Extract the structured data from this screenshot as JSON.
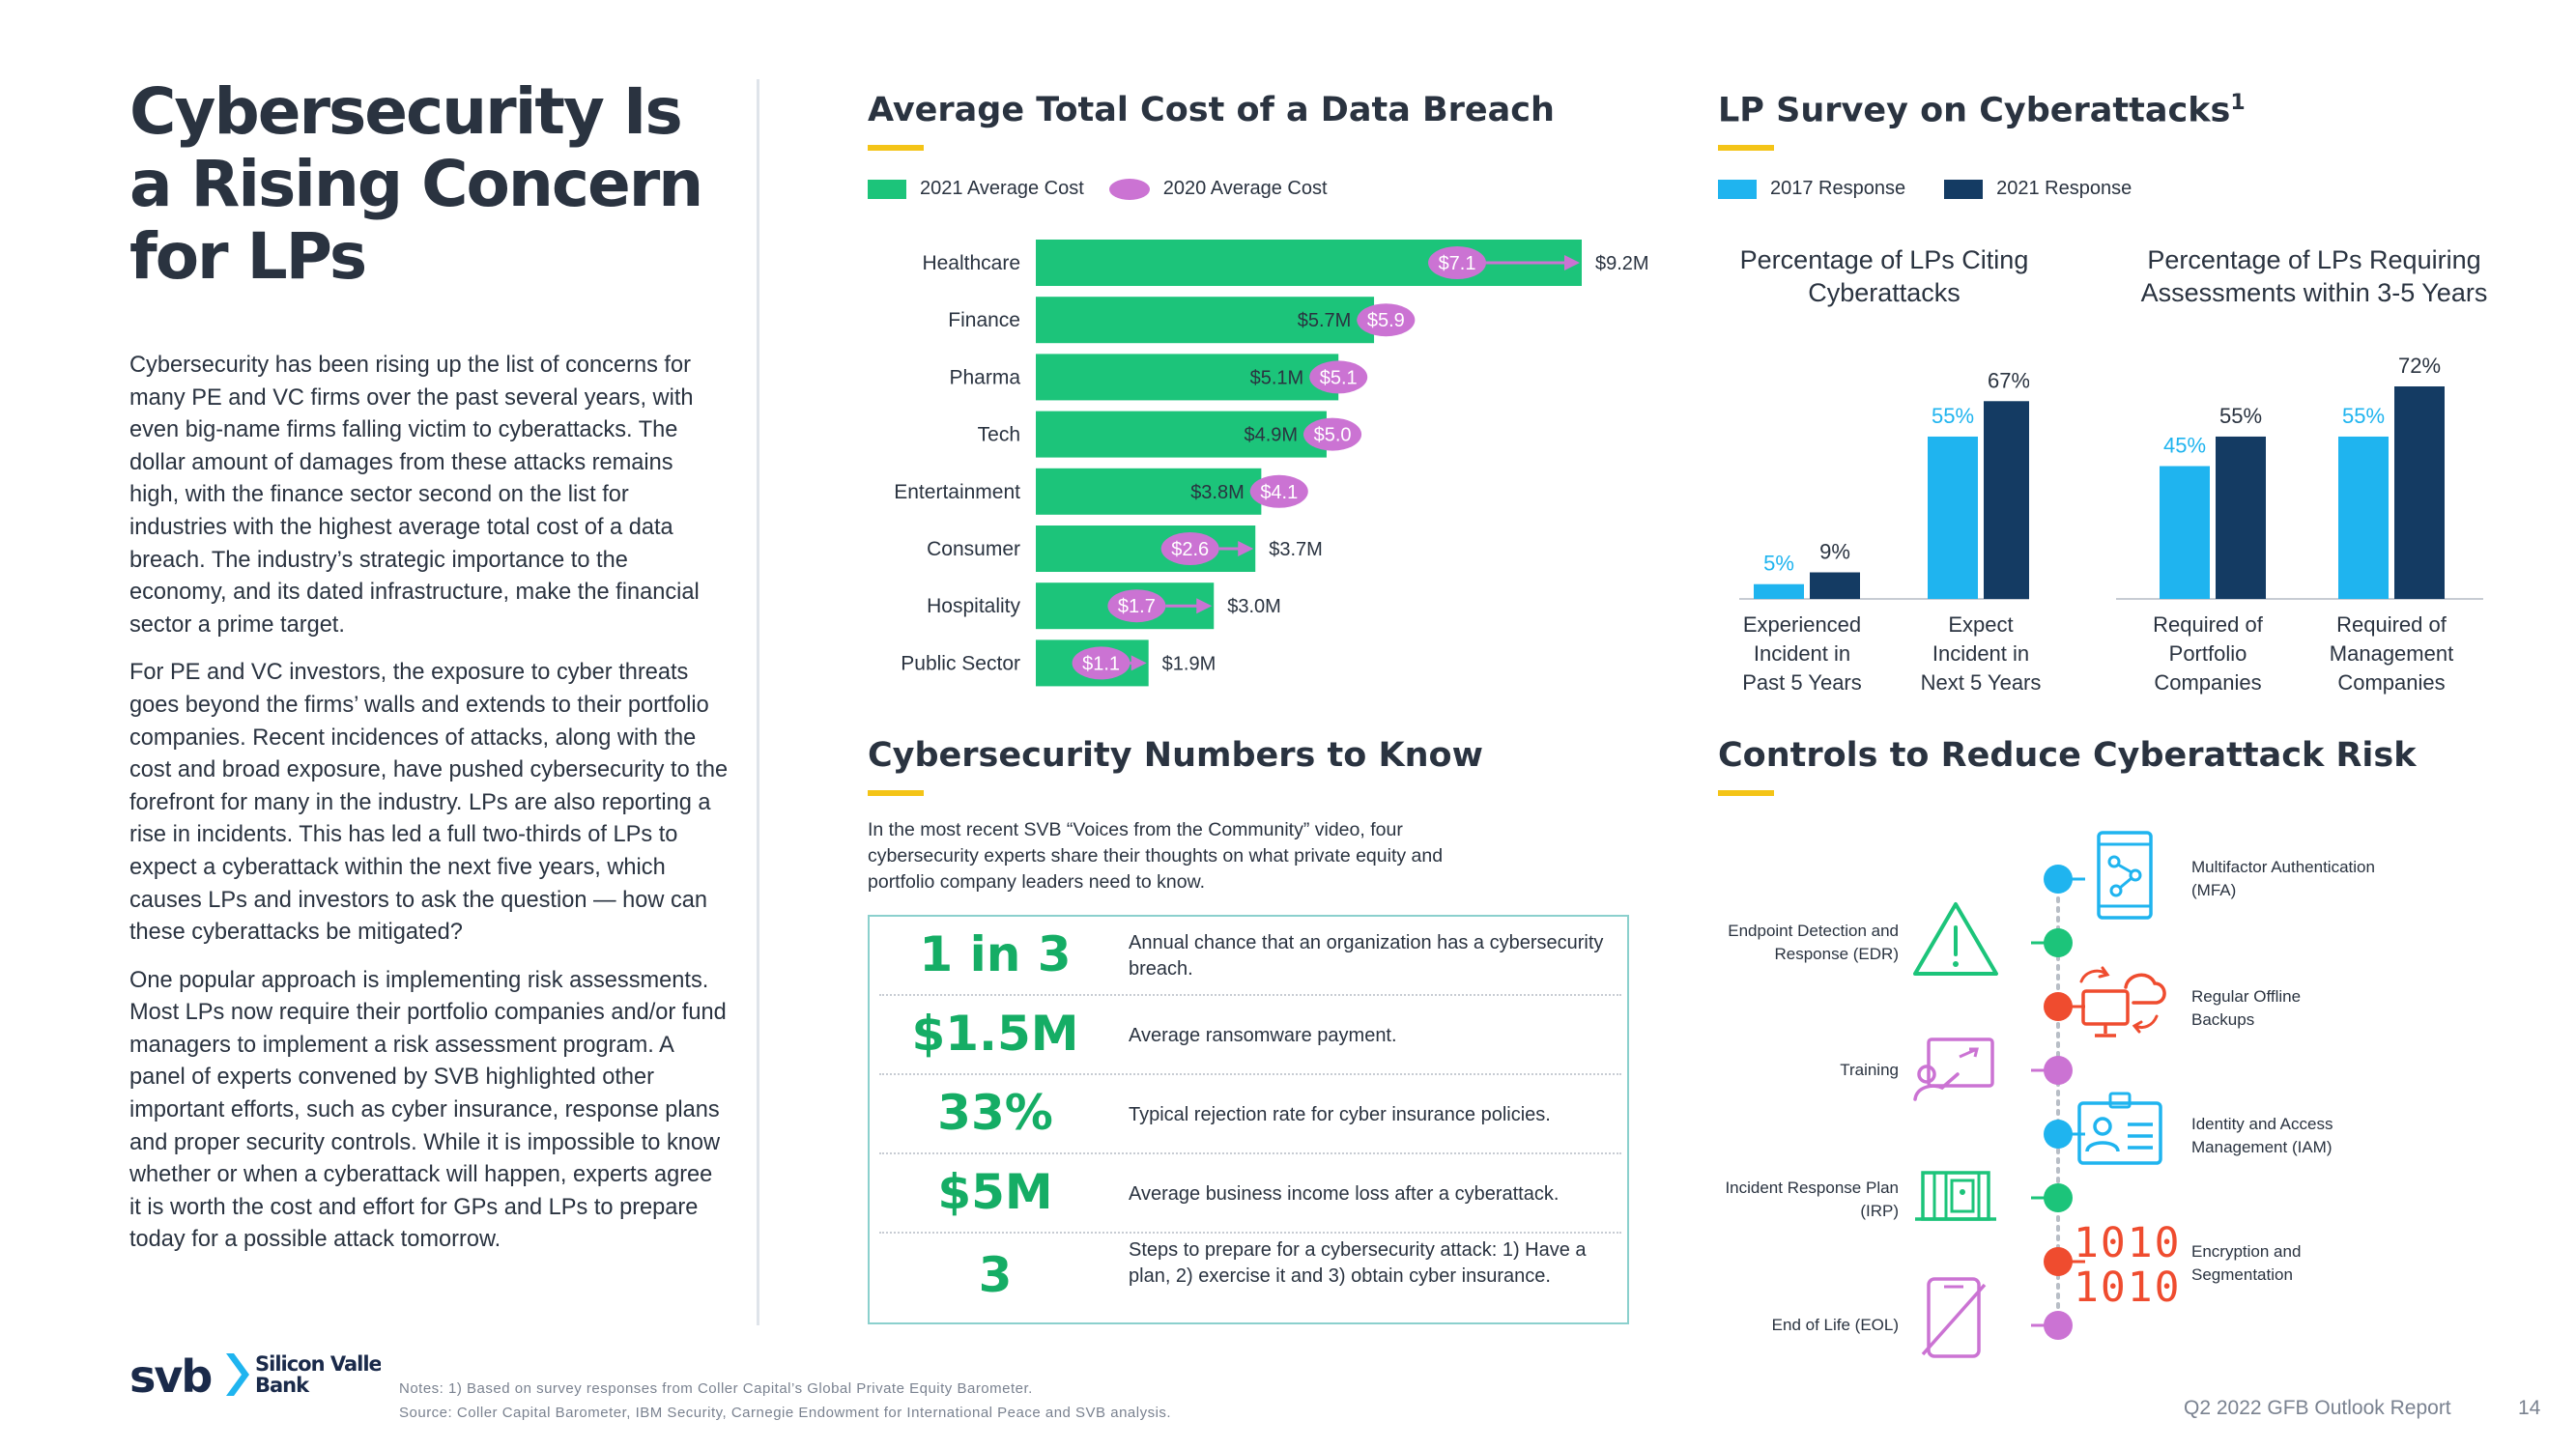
{
  "title": "Cybersecurity Is a Rising Concern for LPs",
  "body_paragraphs": [
    "Cybersecurity has been rising up the list of concerns for many PE and VC firms over the past several years, with even big-name firms falling victim to cyberattacks. The dollar amount of damages from these attacks remains high, with the finance sector second on the list for industries with the highest average total cost of a data breach. The industry’s strategic importance to the economy, and its dated infrastructure, make the financial sector a prime target.",
    "For PE and VC investors, the exposure to cyber threats goes beyond the firms’ walls and extends to their portfolio companies. Recent incidences of attacks, along with the cost and broad exposure, have pushed cybersecurity to the forefront for many in the industry. LPs are also reporting a rise in incidents. This has led a full two-thirds of LPs to expect a cyberattack within the next five years, which causes LPs and investors to ask the question — how can these cyberattacks be mitigated?",
    "One popular approach is implementing risk assessments. Most LPs now require their portfolio companies and/or fund managers to implement a risk assessment program. A panel of experts convened by SVB highlighted other important efforts, such as cyber insurance, response plans and proper security controls. While it is impossible to know whether or when a cyberattack will happen, experts agree it is worth the cost and effort for GPs and LPs to prepare today for a possible attack tomorrow."
  ],
  "breach": {
    "title": "Average Total Cost of a Data Breach",
    "legend_2021": "2021 Average Cost",
    "legend_2020": "2020 Average Cost"
  },
  "numbers": {
    "title": "Cybersecurity Numbers to Know",
    "intro": "In the most recent SVB “Voices from the Community” video, four cybersecurity experts share their thoughts on what private equity and portfolio company leaders need to know.",
    "rows": [
      {
        "big": "1 in 3",
        "desc": "Annual chance that an organization has a cybersecurity breach."
      },
      {
        "big": "$1.5M",
        "desc": "Average ransomware payment."
      },
      {
        "big": "33%",
        "desc": "Typical rejection rate for cyber insurance policies."
      },
      {
        "big": "$5M",
        "desc": "Average business income loss after a cyberattack."
      },
      {
        "big": "3",
        "desc": "Steps to prepare for a cybersecurity attack: 1) Have a plan, 2) exercise it and 3) obtain cyber insurance."
      }
    ]
  },
  "lp_survey": {
    "title": "LP Survey on Cyberattacks",
    "footnote_mark": "1",
    "legend_2017": "2017 Response",
    "legend_2021": "2021 Response"
  },
  "controls": {
    "title": "Controls to Reduce Cyberattack Risk",
    "left_items": [
      "Endpoint Detection and Response (EDR)",
      "Training",
      "Incident Response Plan (IRP)",
      "End of Life (EOL)"
    ],
    "right_items": [
      "Multifactor Authentication (MFA)",
      "Regular Offline Backups",
      "Identity and Access Management (IAM)",
      "Encryption and Segmentation"
    ],
    "binary_top": "1010",
    "binary_bottom": "1010"
  },
  "colors": {
    "green": "#1cc47a",
    "pink": "#cb73d3",
    "light_blue": "#1fb4ef",
    "navy": "#143b63",
    "yellow": "#f4c417",
    "teal_border": "#8bd0cd",
    "red": "#ef4c2f"
  },
  "chart_data": [
    {
      "type": "bar",
      "orientation": "horizontal",
      "categories": [
        "Healthcare",
        "Finance",
        "Pharma",
        "Tech",
        "Entertainment",
        "Consumer",
        "Hospitality",
        "Public Sector"
      ],
      "series": [
        {
          "name": "2021 Average Cost",
          "values": [
            9.2,
            5.7,
            5.1,
            4.9,
            3.8,
            3.7,
            3.0,
            1.9
          ],
          "labels": [
            "$9.2M",
            "$5.7M",
            "$5.1M",
            "$4.9M",
            "$3.8M",
            "$3.7M",
            "$3.0M",
            "$1.9M"
          ]
        },
        {
          "name": "2020 Average Cost",
          "values": [
            7.1,
            5.9,
            5.1,
            5.0,
            4.1,
            2.6,
            1.7,
            1.1
          ],
          "labels": [
            "$7.1",
            "$5.9",
            "$5.1",
            "$5.0",
            "$4.1",
            "$2.6",
            "$1.7",
            "$1.1"
          ]
        }
      ],
      "xlim": [
        0,
        9.2
      ],
      "grid": false,
      "legend": "top-left"
    },
    {
      "type": "bar",
      "subtitle": "Percentage of LPs Citing Cyberattacks",
      "categories": [
        "Experienced Incident in Past 5 Years",
        "Expect Incident in Next 5 Years"
      ],
      "series": [
        {
          "name": "2017 Response",
          "values": [
            5,
            55
          ],
          "labels": [
            "5%",
            "55%"
          ]
        },
        {
          "name": "2021 Response",
          "values": [
            9,
            67
          ],
          "labels": [
            "9%",
            "67%"
          ]
        }
      ],
      "ylim": [
        0,
        72
      ],
      "grid": false
    },
    {
      "type": "bar",
      "subtitle": "Percentage of LPs Requiring Assessments within 3-5 Years",
      "categories": [
        "Required of Portfolio Companies",
        "Required of Management Companies"
      ],
      "series": [
        {
          "name": "2017 Response",
          "values": [
            45,
            55
          ],
          "labels": [
            "45%",
            "55%"
          ]
        },
        {
          "name": "2021 Response",
          "values": [
            55,
            72
          ],
          "labels": [
            "55%",
            "72%"
          ]
        }
      ],
      "ylim": [
        0,
        72
      ],
      "grid": false
    }
  ],
  "logo": {
    "mark": "svb",
    "line1": "Silicon Valley",
    "line2": "Bank"
  },
  "notes": [
    "Notes: 1) Based on survey responses from Coller Capital’s Global Private Equity Barometer.",
    "Source: Coller Capital Barometer, IBM Security, Carnegie Endowment for International Peace and SVB analysis."
  ],
  "footer": {
    "report": "Q2 2022 GFB Outlook Report",
    "page": "14"
  }
}
